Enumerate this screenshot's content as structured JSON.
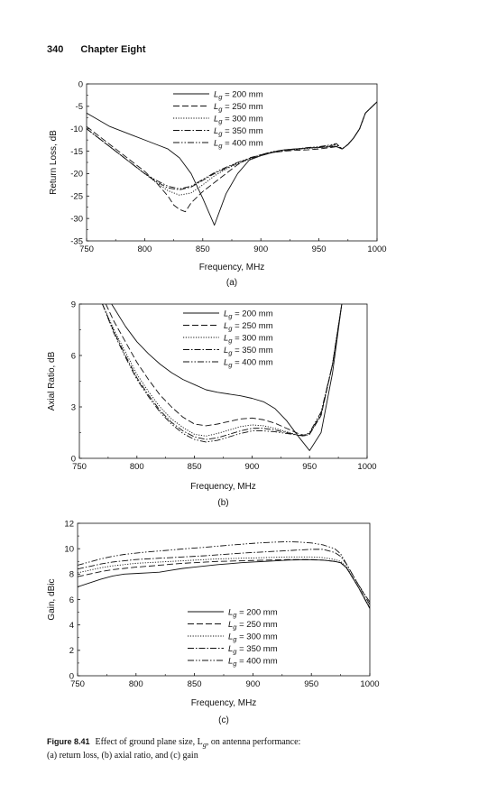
{
  "header": {
    "page_number": "340",
    "chapter": "Chapter Eight"
  },
  "caption": {
    "figure_label": "Figure 8.41",
    "text_line1": "Effect of ground plane size, L",
    "text_line1_sub": "g",
    "text_line1_end": ", on antenna performance:",
    "text_line2": "(a) return loss, (b) axial ratio, and (c) gain"
  },
  "legend_entries": [
    {
      "label": "L",
      "sub": "g",
      "suffix": " = 200 mm",
      "dash": ""
    },
    {
      "label": "L",
      "sub": "g",
      "suffix": " = 250 mm",
      "dash": "7,3"
    },
    {
      "label": "L",
      "sub": "g",
      "suffix": " = 300 mm",
      "dash": "1.2,1.6"
    },
    {
      "label": "L",
      "sub": "g",
      "suffix": " = 350 mm",
      "dash": "7,2,1.5,2"
    },
    {
      "label": "L",
      "sub": "g",
      "suffix": " = 400 mm",
      "dash": "7,2,1.5,2,1.5,2"
    }
  ],
  "chart_data": [
    {
      "id": "a",
      "type": "line",
      "sublabel": "(a)",
      "xlabel": "Frequency, MHz",
      "ylabel": "Return Loss, dB",
      "xlim": [
        750,
        1000
      ],
      "ylim": [
        -35,
        0
      ],
      "xticks": [
        750,
        800,
        850,
        900,
        950,
        1000
      ],
      "yticks": [
        0,
        -5,
        -10,
        -15,
        -20,
        -25,
        -30,
        -35
      ],
      "legend_position": "top-center",
      "series": [
        {
          "name": "Lg = 200 mm",
          "x": [
            750,
            760,
            770,
            780,
            790,
            800,
            810,
            820,
            830,
            840,
            850,
            855,
            860,
            865,
            870,
            880,
            890,
            900,
            910,
            920,
            930,
            940,
            950,
            960,
            965,
            970,
            975,
            980,
            985,
            990,
            1000
          ],
          "y": [
            -6.5,
            -8,
            -9.5,
            -10.5,
            -11.5,
            -12.5,
            -13.5,
            -14.5,
            -16.5,
            -20,
            -25.5,
            -28.5,
            -31.5,
            -28,
            -24.5,
            -20,
            -17,
            -16,
            -15.2,
            -14.7,
            -14.5,
            -14.3,
            -14.2,
            -14.0,
            -14.0,
            -14.5,
            -13.5,
            -12,
            -10,
            -6.5,
            -4
          ]
        },
        {
          "name": "Lg = 250 mm",
          "x": [
            750,
            760,
            770,
            780,
            790,
            800,
            810,
            820,
            825,
            830,
            835,
            840,
            850,
            860,
            870,
            880,
            890,
            900,
            910,
            920,
            930,
            940,
            950,
            960,
            965,
            970,
            975,
            980,
            985,
            990,
            1000
          ],
          "y": [
            -9.5,
            -11.5,
            -13.5,
            -15.5,
            -17.5,
            -19.5,
            -22,
            -25,
            -27,
            -28,
            -28.5,
            -26.5,
            -24,
            -22,
            -20,
            -18,
            -16.5,
            -15.8,
            -15.3,
            -15,
            -14.8,
            -14.7,
            -14.5,
            -14.2,
            -14.0,
            -14.5,
            -13.5,
            -12,
            -10,
            -6.5,
            -4
          ]
        },
        {
          "name": "Lg = 300 mm",
          "x": [
            750,
            760,
            770,
            780,
            790,
            800,
            810,
            820,
            830,
            840,
            850,
            860,
            870,
            880,
            890,
            900,
            910,
            920,
            930,
            940,
            950,
            960,
            965,
            970,
            975,
            980,
            985,
            990,
            1000
          ],
          "y": [
            -10,
            -12,
            -14,
            -16,
            -18,
            -20,
            -22,
            -23.8,
            -24.8,
            -24.3,
            -22.5,
            -20.5,
            -19,
            -17.8,
            -16.8,
            -16,
            -15.3,
            -14.9,
            -14.6,
            -14.4,
            -14.2,
            -14.0,
            -13.8,
            -14.5,
            -13.5,
            -12,
            -10,
            -6.5,
            -4
          ]
        },
        {
          "name": "Lg = 350 mm",
          "x": [
            750,
            760,
            770,
            780,
            790,
            800,
            810,
            820,
            830,
            840,
            850,
            860,
            870,
            880,
            890,
            900,
            910,
            920,
            930,
            940,
            950,
            960,
            965,
            970,
            975,
            980,
            985,
            990,
            1000
          ],
          "y": [
            -10,
            -12,
            -14,
            -16,
            -18,
            -20,
            -21.8,
            -23.2,
            -23.6,
            -23,
            -21.5,
            -20,
            -18.8,
            -17.6,
            -16.7,
            -16,
            -15.3,
            -14.9,
            -14.6,
            -14.3,
            -14.1,
            -13.8,
            -13.5,
            -14.5,
            -13.5,
            -12,
            -10,
            -6.5,
            -4
          ]
        },
        {
          "name": "Lg = 400 mm",
          "x": [
            750,
            760,
            770,
            780,
            790,
            800,
            810,
            820,
            830,
            840,
            850,
            860,
            870,
            880,
            890,
            900,
            910,
            920,
            930,
            940,
            950,
            960,
            965,
            970,
            975,
            980,
            985,
            990,
            1000
          ],
          "y": [
            -10,
            -12,
            -14,
            -16,
            -18,
            -20,
            -21.5,
            -22.8,
            -23.4,
            -22.8,
            -21.3,
            -19.8,
            -18.6,
            -17.5,
            -16.6,
            -15.8,
            -15.1,
            -14.7,
            -14.5,
            -14.2,
            -14.0,
            -13.6,
            -13.3,
            -14.5,
            -13.5,
            -12,
            -10,
            -6.5,
            -4
          ]
        }
      ]
    },
    {
      "id": "b",
      "type": "line",
      "sublabel": "(b)",
      "xlabel": "Frequency, MHz",
      "ylabel": "Axial Ratio, dB",
      "xlim": [
        750,
        1000
      ],
      "ylim": [
        0,
        9
      ],
      "xticks": [
        750,
        800,
        850,
        900,
        950,
        1000
      ],
      "yticks": [
        0,
        3,
        6,
        9
      ],
      "legend_position": "top-center",
      "series": [
        {
          "name": "Lg = 200 mm",
          "x": [
            778,
            790,
            800,
            810,
            820,
            830,
            840,
            850,
            860,
            870,
            880,
            890,
            900,
            910,
            920,
            930,
            940,
            950,
            960,
            970,
            978
          ],
          "y": [
            9,
            7.7,
            6.8,
            6.1,
            5.5,
            5.0,
            4.6,
            4.3,
            4.0,
            3.85,
            3.75,
            3.65,
            3.5,
            3.3,
            2.9,
            2.2,
            1.3,
            0.45,
            1.5,
            5,
            9
          ]
        },
        {
          "name": "Lg = 250 mm",
          "x": [
            773,
            780,
            790,
            800,
            810,
            820,
            830,
            840,
            850,
            860,
            870,
            880,
            890,
            900,
            910,
            920,
            930,
            940,
            945,
            950,
            960,
            970,
            978
          ],
          "y": [
            9,
            8,
            6.8,
            5.6,
            4.6,
            3.7,
            3.0,
            2.4,
            2.0,
            1.9,
            2.0,
            2.15,
            2.3,
            2.35,
            2.25,
            2.05,
            1.75,
            1.45,
            1.35,
            1.4,
            2.5,
            5.5,
            9
          ]
        },
        {
          "name": "Lg = 300 mm",
          "x": [
            770,
            780,
            790,
            800,
            810,
            820,
            830,
            840,
            850,
            860,
            870,
            880,
            890,
            900,
            910,
            920,
            930,
            940,
            945,
            950,
            960,
            970,
            978
          ],
          "y": [
            9,
            7.5,
            6.2,
            4.9,
            3.9,
            3.0,
            2.3,
            1.8,
            1.4,
            1.3,
            1.45,
            1.65,
            1.85,
            1.95,
            1.9,
            1.75,
            1.55,
            1.35,
            1.3,
            1.4,
            2.5,
            5.5,
            9
          ]
        },
        {
          "name": "Lg = 350 mm",
          "x": [
            770,
            780,
            790,
            800,
            810,
            820,
            830,
            840,
            850,
            860,
            870,
            880,
            890,
            900,
            910,
            920,
            930,
            940,
            945,
            950,
            960,
            970,
            978
          ],
          "y": [
            9,
            7.4,
            6.0,
            4.7,
            3.7,
            2.8,
            2.1,
            1.6,
            1.25,
            1.1,
            1.2,
            1.4,
            1.6,
            1.75,
            1.75,
            1.65,
            1.5,
            1.35,
            1.3,
            1.45,
            2.6,
            5.5,
            9
          ]
        },
        {
          "name": "Lg = 400 mm",
          "x": [
            770,
            780,
            790,
            800,
            810,
            820,
            830,
            840,
            850,
            860,
            870,
            880,
            890,
            900,
            910,
            920,
            930,
            940,
            945,
            950,
            960,
            970,
            978
          ],
          "y": [
            9,
            7.3,
            5.9,
            4.6,
            3.6,
            2.7,
            2.0,
            1.45,
            1.1,
            0.95,
            1.05,
            1.25,
            1.45,
            1.6,
            1.6,
            1.55,
            1.45,
            1.35,
            1.35,
            1.5,
            2.7,
            5.5,
            9
          ]
        }
      ]
    },
    {
      "id": "c",
      "type": "line",
      "sublabel": "(c)",
      "xlabel": "Frequency, MHz",
      "ylabel": "Gain, dBic",
      "xlim": [
        750,
        1000
      ],
      "ylim": [
        0,
        12
      ],
      "xticks": [
        750,
        800,
        850,
        900,
        950,
        1000
      ],
      "yticks": [
        0,
        2,
        4,
        6,
        8,
        10,
        12
      ],
      "legend_position": "lower-center",
      "series": [
        {
          "name": "Lg = 200 mm",
          "x": [
            750,
            760,
            770,
            780,
            790,
            800,
            810,
            820,
            830,
            840,
            850,
            860,
            870,
            880,
            890,
            900,
            910,
            920,
            930,
            940,
            950,
            960,
            970,
            975,
            980,
            990,
            1000
          ],
          "y": [
            7.0,
            7.3,
            7.6,
            7.85,
            8.0,
            8.05,
            8.1,
            8.15,
            8.3,
            8.45,
            8.55,
            8.65,
            8.75,
            8.82,
            8.9,
            8.95,
            9.0,
            9.05,
            9.1,
            9.12,
            9.12,
            9.1,
            9.0,
            8.9,
            8.5,
            7.0,
            5.3
          ]
        },
        {
          "name": "Lg = 250 mm",
          "x": [
            750,
            760,
            770,
            780,
            790,
            800,
            810,
            820,
            830,
            840,
            850,
            860,
            870,
            880,
            890,
            900,
            910,
            920,
            930,
            940,
            950,
            960,
            970,
            975,
            980,
            990,
            1000
          ],
          "y": [
            7.8,
            8.0,
            8.2,
            8.35,
            8.45,
            8.55,
            8.62,
            8.7,
            8.78,
            8.85,
            8.9,
            8.95,
            9.0,
            9.02,
            9.05,
            9.07,
            9.1,
            9.12,
            9.15,
            9.15,
            9.15,
            9.1,
            9.0,
            8.9,
            8.5,
            7.0,
            5.3
          ]
        },
        {
          "name": "Lg = 300 mm",
          "x": [
            750,
            760,
            770,
            780,
            790,
            800,
            810,
            820,
            830,
            840,
            850,
            860,
            870,
            880,
            890,
            900,
            910,
            920,
            930,
            940,
            950,
            960,
            970,
            975,
            980,
            990,
            1000
          ],
          "y": [
            8.1,
            8.3,
            8.5,
            8.65,
            8.75,
            8.85,
            8.9,
            8.95,
            9.0,
            9.05,
            9.1,
            9.15,
            9.2,
            9.22,
            9.25,
            9.27,
            9.3,
            9.32,
            9.35,
            9.35,
            9.35,
            9.3,
            9.15,
            9.0,
            8.6,
            7.0,
            5.4
          ]
        },
        {
          "name": "Lg = 350 mm",
          "x": [
            750,
            760,
            770,
            780,
            790,
            800,
            810,
            820,
            830,
            840,
            850,
            860,
            870,
            880,
            890,
            900,
            910,
            920,
            930,
            940,
            950,
            960,
            970,
            975,
            980,
            990,
            1000
          ],
          "y": [
            8.4,
            8.6,
            8.8,
            8.95,
            9.05,
            9.15,
            9.2,
            9.25,
            9.3,
            9.35,
            9.4,
            9.45,
            9.52,
            9.58,
            9.65,
            9.7,
            9.75,
            9.8,
            9.85,
            9.9,
            9.95,
            9.95,
            9.7,
            9.4,
            8.8,
            7.2,
            5.6
          ]
        },
        {
          "name": "Lg = 400 mm",
          "x": [
            750,
            760,
            770,
            780,
            790,
            800,
            810,
            820,
            830,
            840,
            850,
            860,
            870,
            880,
            890,
            900,
            910,
            920,
            930,
            940,
            950,
            960,
            970,
            975,
            980,
            990,
            1000
          ],
          "y": [
            8.7,
            8.95,
            9.2,
            9.4,
            9.55,
            9.65,
            9.75,
            9.82,
            9.9,
            9.98,
            10.05,
            10.12,
            10.2,
            10.28,
            10.35,
            10.42,
            10.48,
            10.52,
            10.55,
            10.52,
            10.45,
            10.3,
            10.0,
            9.6,
            8.8,
            7.2,
            5.8
          ]
        }
      ]
    }
  ]
}
